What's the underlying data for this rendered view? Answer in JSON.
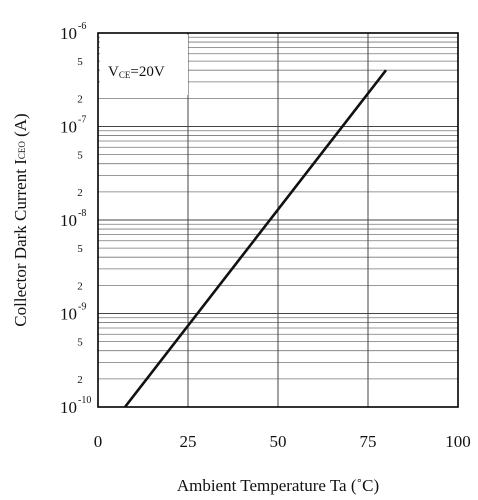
{
  "chart_data": {
    "type": "line",
    "xlabel": {
      "text": "Ambient Temperature Ta (",
      "unit": "˚C",
      "suffix": ")"
    },
    "ylabel": {
      "text": "Collector Dark Current I",
      "sub": "CEO",
      "suffix": " (A)"
    },
    "xlim": [
      0,
      100
    ],
    "ylim": [
      1e-10,
      1e-06
    ],
    "yscale": "log",
    "grid": true,
    "x_ticks": [
      "0",
      "25",
      "50",
      "75",
      "100"
    ],
    "y_decades": [
      {
        "base": "10",
        "exp": "-6",
        "value": 1e-06
      },
      {
        "base": "10",
        "exp": "-7",
        "value": 1e-07
      },
      {
        "base": "10",
        "exp": "-8",
        "value": 1e-08
      },
      {
        "base": "10",
        "exp": "-9",
        "value": 1e-09
      },
      {
        "base": "10",
        "exp": "-10",
        "value": 1e-10
      }
    ],
    "y_minor_labels": [
      "5",
      "2"
    ],
    "annotation": {
      "main": "V",
      "sub": "CE",
      "rest": "=20V"
    },
    "series": [
      {
        "x": [
          7.5,
          80
        ],
        "y": [
          1e-10,
          4e-07
        ]
      }
    ]
  }
}
